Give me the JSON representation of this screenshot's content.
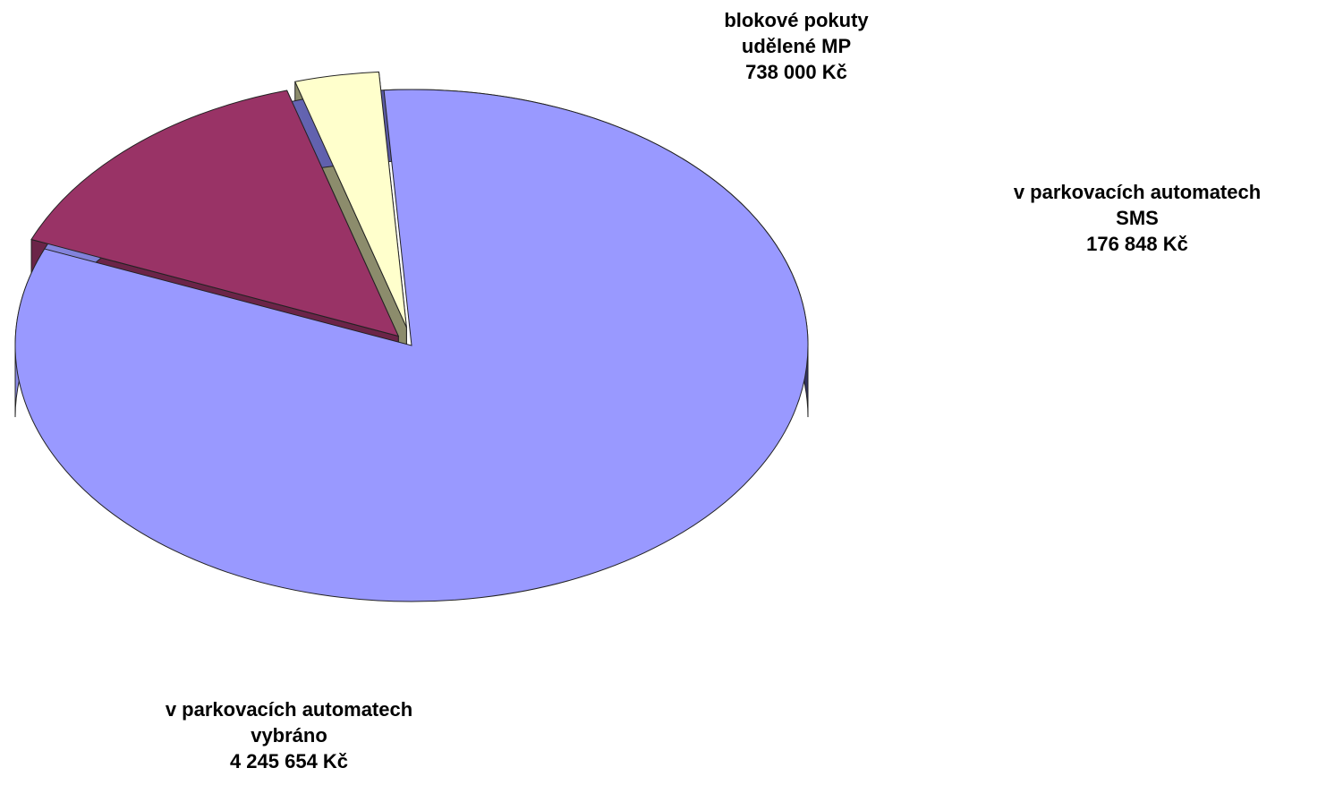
{
  "chart_data": {
    "type": "pie",
    "variant": "3d-exploded",
    "slices": [
      {
        "label_lines": [
          "v parkovacích automatech",
          "vybráno",
          "4 245 654 Kč"
        ],
        "value": 4245654,
        "color": "#9999FF",
        "side_color": "#6F6FC8"
      },
      {
        "label_lines": [
          "blokové pokuty",
          "udělené MP",
          "738 000 Kč"
        ],
        "value": 738000,
        "color": "#993366",
        "side_color": "#6B2448"
      },
      {
        "label_lines": [
          "v parkovacích automatech",
          "SMS",
          "176 848 Kč"
        ],
        "value": 176848,
        "color": "#FFFFCC",
        "side_color": "#8C8C6C"
      }
    ],
    "legend": "none"
  }
}
